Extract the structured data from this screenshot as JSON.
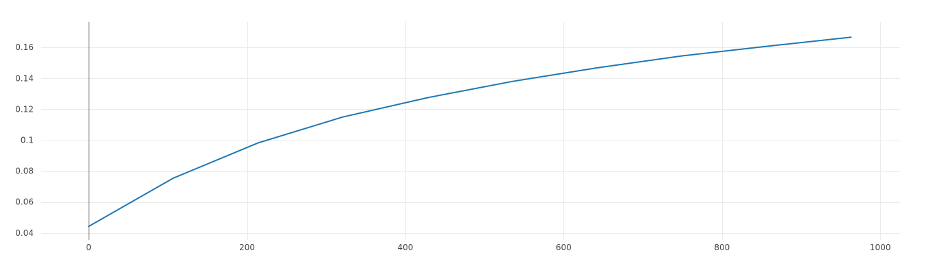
{
  "chart_data": {
    "type": "line",
    "title": "",
    "xlabel": "",
    "ylabel": "",
    "xlim": [
      -60,
      1025
    ],
    "ylim": [
      0.0355,
      0.1765
    ],
    "x_ticks": [
      0,
      200,
      400,
      600,
      800,
      1000
    ],
    "x_tick_labels": [
      "0",
      "200",
      "400",
      "600",
      "800",
      "1000"
    ],
    "y_ticks": [
      0.04,
      0.06,
      0.08,
      0.1,
      0.12,
      0.14,
      0.16
    ],
    "y_tick_labels": [
      "0.04",
      "0.06",
      "0.08",
      "0.1",
      "0.12",
      "0.14",
      "0.16"
    ],
    "grid": true,
    "legend": false,
    "series": [
      {
        "color": "#1f77b4",
        "x": [
          0,
          107,
          214,
          321,
          428,
          535,
          642,
          749,
          856,
          963
        ],
        "y": [
          0.0443,
          0.0755,
          0.0983,
          0.115,
          0.1275,
          0.138,
          0.1468,
          0.1545,
          0.1607,
          0.1666
        ]
      }
    ]
  }
}
